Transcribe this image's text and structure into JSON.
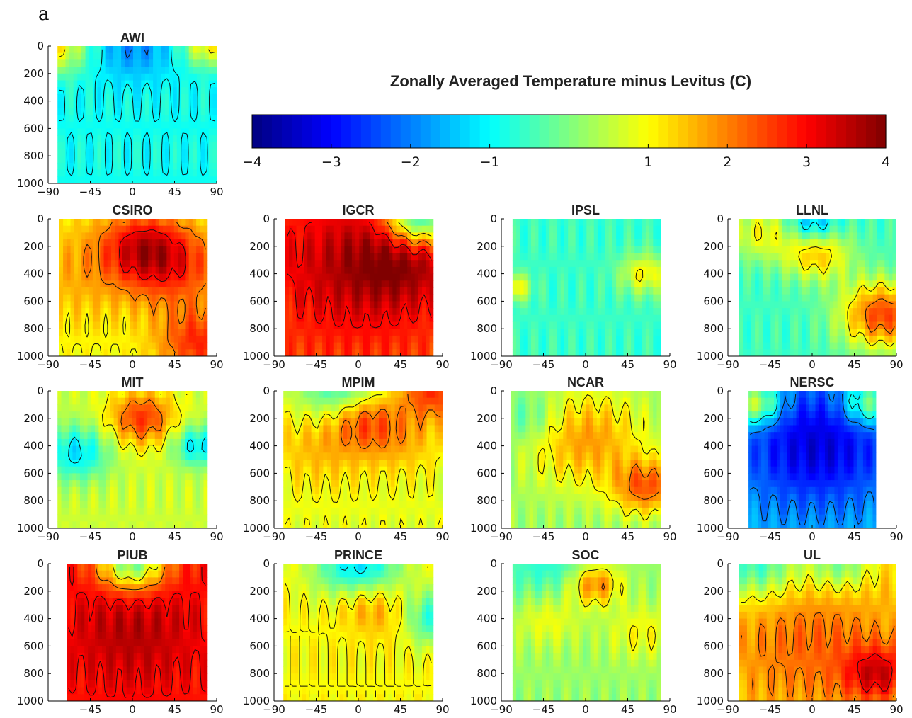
{
  "figure_label": "a",
  "colorbar": {
    "title": "Zonally Averaged Temperature minus Levitus (C)",
    "ticks": [
      {
        "value": -4,
        "label": "−4"
      },
      {
        "value": -3,
        "label": "−3"
      },
      {
        "value": -2,
        "label": "−2"
      },
      {
        "value": -1,
        "label": "−1"
      },
      {
        "value": 1,
        "label": "1"
      },
      {
        "value": 2,
        "label": "2"
      },
      {
        "value": 3,
        "label": "3"
      },
      {
        "value": 4,
        "label": "4"
      }
    ],
    "range": [
      -4,
      4
    ],
    "colormap": "jet"
  },
  "chart_data": [
    {
      "type": "heatmap",
      "title": "AWI",
      "xlim": [
        -90,
        90
      ],
      "ylim": [
        0,
        1000
      ],
      "y_reversed": true,
      "xticks": [
        "−90",
        "−45",
        "0",
        "45",
        "90"
      ],
      "yticks": [
        "0",
        "200",
        "400",
        "600",
        "800",
        "1000"
      ],
      "data_extent": [
        -80,
        90
      ],
      "base": -0.9,
      "blobs": [
        [
          -80,
          0,
          0.2,
          2.0
        ],
        [
          80,
          0,
          0.15,
          2.0
        ],
        [
          0,
          0,
          0.25,
          -1.0
        ]
      ]
    },
    {
      "type": "heatmap",
      "title": "CSIRO",
      "xlim": [
        -90,
        90
      ],
      "ylim": [
        0,
        1000
      ],
      "y_reversed": true,
      "xticks": [
        "−90",
        "−45",
        "0",
        "45",
        "90"
      ],
      "yticks": [
        "0",
        "200",
        "400",
        "600",
        "800",
        "1000"
      ],
      "data_extent": [
        -78,
        80
      ],
      "base": 0.9,
      "blobs": [
        [
          10,
          200,
          0.25,
          1.8
        ],
        [
          45,
          350,
          0.3,
          1.6
        ],
        [
          72,
          900,
          0.25,
          1.8
        ],
        [
          -60,
          400,
          0.4,
          0.7
        ]
      ]
    },
    {
      "type": "heatmap",
      "title": "IGCR",
      "xlim": [
        -90,
        90
      ],
      "ylim": [
        0,
        1000
      ],
      "y_reversed": true,
      "xticks": [
        "−90",
        "−45",
        "0",
        "45",
        "90"
      ],
      "yticks": [
        "0",
        "200",
        "400",
        "600",
        "800",
        "1000"
      ],
      "data_extent": [
        -78,
        80
      ],
      "base": 2.4,
      "blobs": [
        [
          0,
          350,
          0.5,
          1.2
        ],
        [
          50,
          300,
          0.3,
          0.8
        ],
        [
          65,
          0,
          0.2,
          -3.5
        ]
      ]
    },
    {
      "type": "heatmap",
      "title": "IPSL",
      "xlim": [
        -90,
        90
      ],
      "ylim": [
        0,
        1000
      ],
      "y_reversed": true,
      "xticks": [
        "−90",
        "−45",
        "0",
        "45",
        "90"
      ],
      "yticks": [
        "0",
        "200",
        "400",
        "600",
        "800",
        "1000"
      ],
      "data_extent": [
        -78,
        80
      ],
      "base": -0.55,
      "blobs": [
        [
          63,
          400,
          0.15,
          1.6
        ],
        [
          -78,
          500,
          0.1,
          1.8
        ]
      ]
    },
    {
      "type": "heatmap",
      "title": "LLNL",
      "xlim": [
        -90,
        90
      ],
      "ylim": [
        0,
        1000
      ],
      "y_reversed": true,
      "xticks": [
        "−90",
        "−45",
        "0",
        "45",
        "90"
      ],
      "yticks": [
        "0",
        "200",
        "400",
        "600",
        "800",
        "1000"
      ],
      "data_extent": [
        -78,
        90
      ],
      "base": -0.5,
      "blobs": [
        [
          5,
          250,
          0.2,
          2.0
        ],
        [
          75,
          700,
          0.25,
          3.0
        ],
        [
          0,
          50,
          0.15,
          -1.5
        ],
        [
          -55,
          100,
          0.2,
          1.4
        ]
      ]
    },
    {
      "type": "heatmap",
      "title": "MIT",
      "xlim": [
        -90,
        90
      ],
      "ylim": [
        0,
        1000
      ],
      "y_reversed": true,
      "xticks": [
        "−90",
        "−45",
        "0",
        "45",
        "90"
      ],
      "yticks": [
        "0",
        "200",
        "400",
        "600",
        "800",
        "1000"
      ],
      "data_extent": [
        -80,
        80
      ],
      "base": 0.6,
      "blobs": [
        [
          10,
          200,
          0.2,
          2.0
        ],
        [
          -60,
          450,
          0.2,
          -1.8
        ],
        [
          70,
          400,
          0.15,
          -1.8
        ]
      ]
    },
    {
      "type": "heatmap",
      "title": "MPIM",
      "xlim": [
        -90,
        90
      ],
      "ylim": [
        0,
        1000
      ],
      "y_reversed": true,
      "xticks": [
        "−90",
        "−45",
        "0",
        "45",
        "90"
      ],
      "yticks": [
        "0",
        "200",
        "400",
        "600",
        "800",
        "1000"
      ],
      "data_extent": [
        -80,
        90
      ],
      "base": 0.8,
      "blobs": [
        [
          5,
          200,
          0.2,
          1.5
        ],
        [
          -40,
          400,
          0.3,
          0.8
        ],
        [
          45,
          350,
          0.25,
          0.8
        ],
        [
          80,
          0,
          0.2,
          1.8
        ],
        [
          -20,
          0,
          0.25,
          -1.6
        ]
      ]
    },
    {
      "type": "heatmap",
      "title": "NCAR",
      "xlim": [
        -90,
        90
      ],
      "ylim": [
        0,
        1000
      ],
      "y_reversed": true,
      "xticks": [
        "−90",
        "−45",
        "0",
        "45",
        "90"
      ],
      "yticks": [
        "0",
        "200",
        "400",
        "600",
        "800",
        "1000"
      ],
      "data_extent": [
        -80,
        80
      ],
      "base": 0.2,
      "blobs": [
        [
          0,
          350,
          0.35,
          1.6
        ],
        [
          65,
          700,
          0.2,
          2.0
        ],
        [
          -60,
          200,
          0.2,
          -0.8
        ]
      ]
    },
    {
      "type": "heatmap",
      "title": "NERSC",
      "xlim": [
        -90,
        90
      ],
      "ylim": [
        0,
        1000
      ],
      "y_reversed": true,
      "xticks": [
        "−90",
        "−45",
        "0",
        "45",
        "90"
      ],
      "yticks": [
        "0",
        "200",
        "400",
        "600",
        "800",
        "1000"
      ],
      "data_extent": [
        -68,
        68
      ],
      "base": -1.5,
      "blobs": [
        [
          5,
          400,
          0.45,
          -1.8
        ],
        [
          -60,
          100,
          0.15,
          2.5
        ],
        [
          60,
          100,
          0.15,
          2.0
        ]
      ]
    },
    {
      "type": "heatmap",
      "title": "PIUB",
      "xlim": [
        -90,
        90
      ],
      "ylim": [
        0,
        1000
      ],
      "y_reversed": true,
      "xticks": [
        "−45",
        "0",
        "45",
        "90"
      ],
      "yticks": [
        "0",
        "200",
        "400",
        "600",
        "800",
        "1000"
      ],
      "data_extent": [
        -70,
        80
      ],
      "base": 2.8,
      "blobs": [
        [
          0,
          0,
          0.2,
          -3.0
        ],
        [
          0,
          500,
          0.4,
          0.8
        ]
      ]
    },
    {
      "type": "heatmap",
      "title": "PRINCE",
      "xlim": [
        -90,
        90
      ],
      "ylim": [
        0,
        1000
      ],
      "y_reversed": true,
      "xticks": [
        "−90",
        "−45",
        "0",
        "45",
        "90"
      ],
      "yticks": [
        "0",
        "200",
        "400",
        "600",
        "800",
        "1000"
      ],
      "data_extent": [
        -80,
        80
      ],
      "base": 1.0,
      "blobs": [
        [
          0,
          50,
          0.25,
          -2.5
        ],
        [
          75,
          400,
          0.2,
          -2.0
        ],
        [
          5,
          250,
          0.2,
          1.2
        ],
        [
          45,
          400,
          0.2,
          0.8
        ]
      ]
    },
    {
      "type": "heatmap",
      "title": "SOC",
      "xlim": [
        -90,
        90
      ],
      "ylim": [
        0,
        1000
      ],
      "y_reversed": true,
      "xticks": [
        "−90",
        "−45",
        "0",
        "45",
        "90"
      ],
      "yticks": [
        "0",
        "200",
        "400",
        "600",
        "800",
        "1000"
      ],
      "data_extent": [
        -78,
        80
      ],
      "base": 0.2,
      "blobs": [
        [
          10,
          150,
          0.15,
          2.0
        ],
        [
          -40,
          400,
          0.2,
          0.8
        ],
        [
          60,
          500,
          0.2,
          0.8
        ],
        [
          -40,
          0,
          0.3,
          -0.9
        ]
      ]
    },
    {
      "type": "heatmap",
      "title": "UL",
      "xlim": [
        -90,
        90
      ],
      "ylim": [
        0,
        1000
      ],
      "y_reversed": true,
      "xticks": [
        "−90",
        "−45",
        "0",
        "45",
        "90"
      ],
      "yticks": [
        "0",
        "200",
        "400",
        "600",
        "800",
        "1000"
      ],
      "data_extent": [
        -78,
        90
      ],
      "base": 1.4,
      "blobs": [
        [
          0,
          600,
          0.45,
          0.8
        ],
        [
          70,
          800,
          0.2,
          1.8
        ],
        [
          -60,
          0,
          0.25,
          -2.0
        ],
        [
          30,
          0,
          0.2,
          -1.5
        ]
      ]
    }
  ]
}
